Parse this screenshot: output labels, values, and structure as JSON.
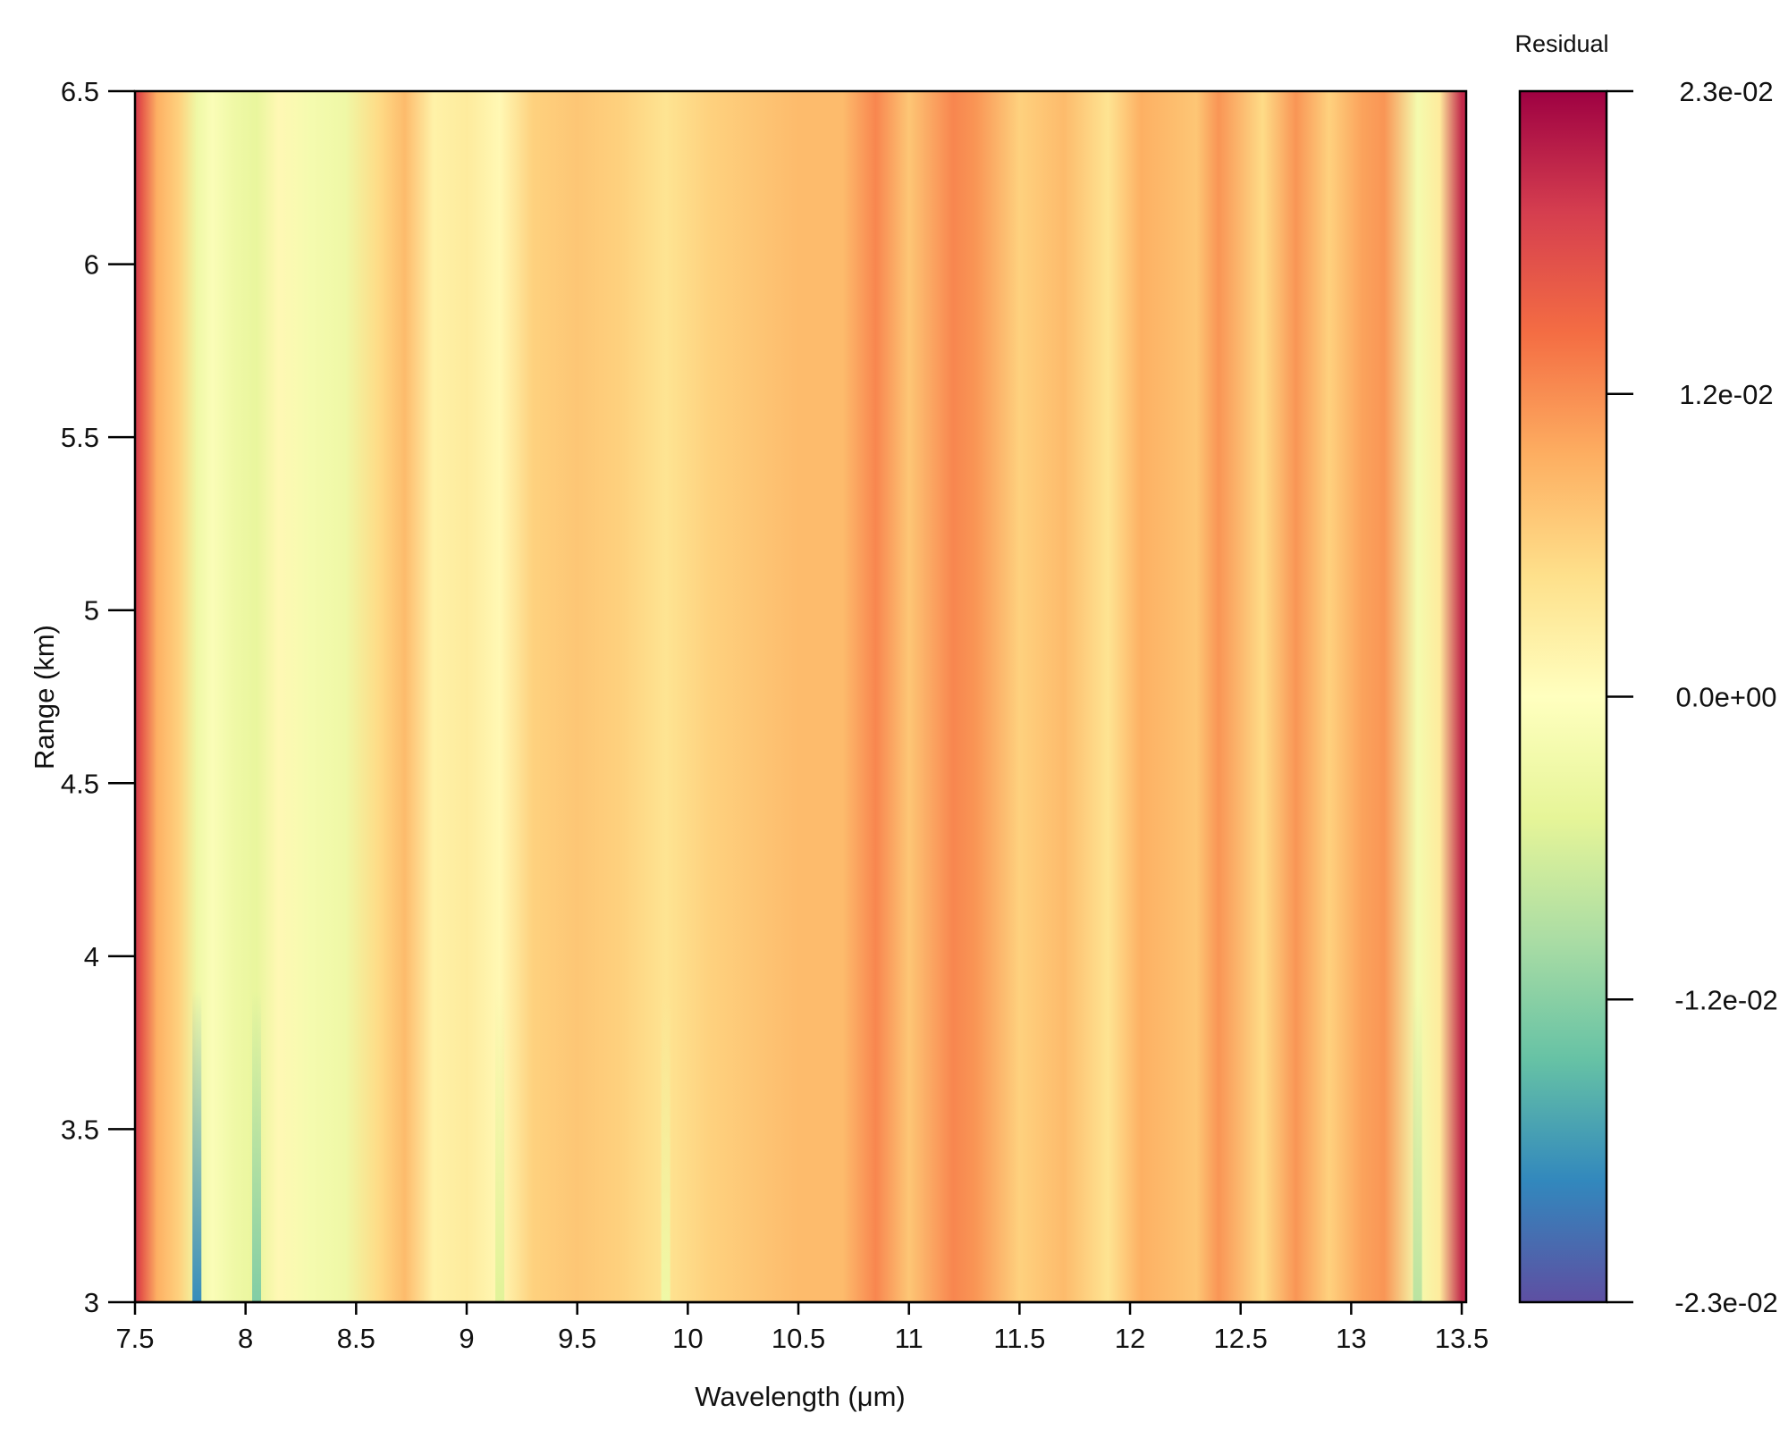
{
  "chart_data": {
    "type": "heatmap",
    "xlabel": "Wavelength (μm)",
    "ylabel": "Range (km)",
    "xlim": [
      7.5,
      13.52
    ],
    "ylim": [
      3,
      6.5
    ],
    "x_ticks": [
      7.5,
      8,
      8.5,
      9,
      9.5,
      10,
      10.5,
      11,
      11.5,
      12,
      12.5,
      13,
      13.5
    ],
    "x_tick_labels": [
      "7.5",
      "8",
      "8.5",
      "9",
      "9.5",
      "10",
      "10.5",
      "11",
      "11.5",
      "12",
      "12.5",
      "13",
      "13.5"
    ],
    "y_ticks": [
      3,
      3.5,
      4,
      4.5,
      5,
      5.5,
      6,
      6.5
    ],
    "y_tick_labels": [
      "3",
      "3.5",
      "4",
      "4.5",
      "5",
      "5.5",
      "6",
      "6.5"
    ],
    "colorbar": {
      "title": "Residual",
      "range": [
        -0.023,
        0.023
      ],
      "ticks": [
        0.023,
        0.0115,
        0,
        -0.0115,
        -0.023
      ],
      "tick_labels": [
        "2.3e-02",
        "1.2e-02",
        "0.0e+00",
        "-1.2e-02",
        "-2.3e-02"
      ],
      "colormap": "Spectral",
      "stops": [
        "#5e4fa2",
        "#3288bd",
        "#66c2a5",
        "#abdda4",
        "#e6f598",
        "#ffffbf",
        "#fee08b",
        "#fdae61",
        "#f46d43",
        "#d53e4f",
        "#9e0142"
      ]
    },
    "features": [
      {
        "x": 7.5,
        "value": 0.019
      },
      {
        "x": 7.53,
        "value": 0.016
      },
      {
        "x": 7.6,
        "value": 0.009
      },
      {
        "x": 7.7,
        "value": 0.006
      },
      {
        "x": 7.78,
        "value": -0.003,
        "low_value": -0.018
      },
      {
        "x": 7.85,
        "value": -0.001
      },
      {
        "x": 7.95,
        "value": -0.003
      },
      {
        "x": 8.05,
        "value": -0.004,
        "low_value": -0.012
      },
      {
        "x": 8.15,
        "value": 0.001
      },
      {
        "x": 8.3,
        "value": -0.002
      },
      {
        "x": 8.45,
        "value": -0.003
      },
      {
        "x": 8.6,
        "value": 0.005
      },
      {
        "x": 8.72,
        "value": 0.008
      },
      {
        "x": 8.85,
        "value": 0.002
      },
      {
        "x": 9.0,
        "value": 0.003
      },
      {
        "x": 9.15,
        "value": 0.001,
        "low_value": -0.005
      },
      {
        "x": 9.3,
        "value": 0.006
      },
      {
        "x": 9.5,
        "value": 0.007
      },
      {
        "x": 9.7,
        "value": 0.006
      },
      {
        "x": 9.9,
        "value": 0.004,
        "low_value": -0.003
      },
      {
        "x": 10.1,
        "value": 0.006
      },
      {
        "x": 10.3,
        "value": 0.007
      },
      {
        "x": 10.5,
        "value": 0.008
      },
      {
        "x": 10.7,
        "value": 0.008
      },
      {
        "x": 10.85,
        "value": 0.012
      },
      {
        "x": 11.0,
        "value": 0.007
      },
      {
        "x": 11.2,
        "value": 0.012
      },
      {
        "x": 11.3,
        "value": 0.011
      },
      {
        "x": 11.5,
        "value": 0.006
      },
      {
        "x": 11.7,
        "value": 0.008
      },
      {
        "x": 11.9,
        "value": 0.004
      },
      {
        "x": 12.05,
        "value": 0.009
      },
      {
        "x": 12.3,
        "value": 0.007
      },
      {
        "x": 12.4,
        "value": 0.011
      },
      {
        "x": 12.6,
        "value": 0.005
      },
      {
        "x": 12.75,
        "value": 0.011
      },
      {
        "x": 12.9,
        "value": 0.006
      },
      {
        "x": 13.05,
        "value": 0.01
      },
      {
        "x": 13.15,
        "value": 0.011
      },
      {
        "x": 13.3,
        "value": -0.002,
        "low_value": -0.008
      },
      {
        "x": 13.4,
        "value": 0.003
      },
      {
        "x": 13.5,
        "value": 0.02
      }
    ]
  }
}
